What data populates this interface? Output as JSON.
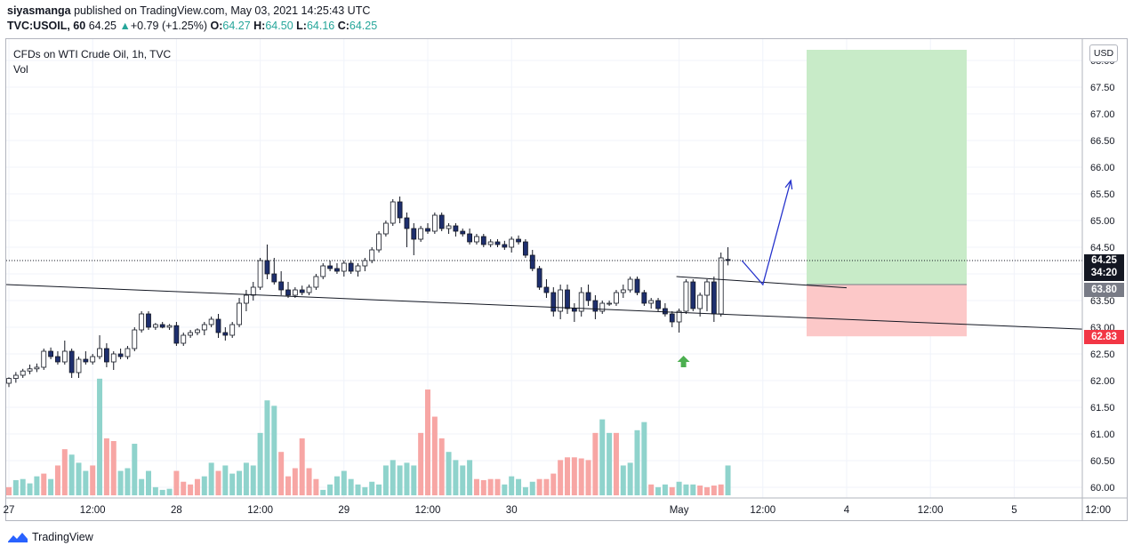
{
  "header": {
    "user": "siyasmanga",
    "published_text": "published on TradingView.com, May 03, 2021 14:25:43 UTC"
  },
  "ohlc": {
    "symbol": "TVC:USOIL, 60",
    "last": "64.25",
    "arrow": "▲",
    "change": "+0.79 (+1.25%)",
    "open_label": "O:",
    "open": "64.27",
    "high_label": "H:",
    "high": "64.50",
    "low_label": "L:",
    "low": "64.16",
    "close_label": "C:",
    "close": "64.25"
  },
  "legend": {
    "title": "CFDs on WTI Crude Oil, 1h, TVC",
    "volume": "Vol"
  },
  "price_scale": {
    "currency": "USD"
  },
  "tags": {
    "last_price": "64.25",
    "countdown": "34:20",
    "entry": "63.80",
    "stop": "62.83"
  },
  "brand": {
    "name": "TradingView",
    "icon": "tradingview-logo-icon"
  },
  "colors": {
    "up": "#26a69a",
    "down": "#ef5350",
    "candle_down": "#1e2f6e",
    "profit_zone": "#c8ebc8",
    "loss_zone": "#fcc8c8",
    "arrow_blue": "#2633cc",
    "signal_arrow": "#4caf50"
  },
  "chart_data": {
    "type": "candlestick",
    "symbol": "CFDs on WTI Crude Oil",
    "interval": "1h",
    "ylim": [
      59.9,
      68.2
    ],
    "y_ticks": [
      "60.00",
      "60.50",
      "61.00",
      "61.50",
      "62.00",
      "62.50",
      "63.00",
      "63.50",
      "64.00",
      "64.50",
      "65.00",
      "65.50",
      "66.00",
      "66.50",
      "67.00",
      "67.50",
      "68.00"
    ],
    "x_ticks": [
      {
        "hour": 0,
        "label": "27"
      },
      {
        "hour": 12,
        "label": "12:00"
      },
      {
        "hour": 24,
        "label": "28"
      },
      {
        "hour": 36,
        "label": "12:00"
      },
      {
        "hour": 48,
        "label": "29"
      },
      {
        "hour": 60,
        "label": "12:00"
      },
      {
        "hour": 72,
        "label": "30"
      },
      {
        "hour": 96,
        "label": "May"
      },
      {
        "hour": 108,
        "label": "12:00"
      },
      {
        "hour": 120,
        "label": "4"
      },
      {
        "hour": 132,
        "label": "12:00"
      },
      {
        "hour": 144,
        "label": "5"
      },
      {
        "hour": 156,
        "label": "12:00"
      }
    ],
    "candles": [
      [
        61.95,
        62.06,
        61.88,
        62.04
      ],
      [
        62.04,
        62.16,
        61.96,
        62.1
      ],
      [
        62.1,
        62.22,
        62.05,
        62.18
      ],
      [
        62.18,
        62.3,
        62.12,
        62.22
      ],
      [
        62.22,
        62.32,
        62.16,
        62.25
      ],
      [
        62.25,
        62.6,
        62.2,
        62.55
      ],
      [
        62.55,
        62.62,
        62.4,
        62.45
      ],
      [
        62.45,
        62.55,
        62.3,
        62.35
      ],
      [
        62.35,
        62.75,
        62.3,
        62.55
      ],
      [
        62.55,
        62.6,
        62.05,
        62.15
      ],
      [
        62.15,
        62.45,
        62.05,
        62.4
      ],
      [
        62.4,
        62.55,
        62.3,
        62.35
      ],
      [
        62.35,
        62.5,
        62.3,
        62.45
      ],
      [
        62.45,
        62.85,
        62.4,
        62.6
      ],
      [
        62.6,
        62.7,
        62.25,
        62.35
      ],
      [
        62.35,
        62.55,
        62.2,
        62.5
      ],
      [
        62.5,
        62.6,
        62.4,
        62.45
      ],
      [
        62.45,
        62.65,
        62.4,
        62.6
      ],
      [
        62.6,
        63.0,
        62.55,
        62.95
      ],
      [
        62.95,
        63.3,
        62.9,
        63.25
      ],
      [
        63.25,
        63.3,
        62.95,
        63.0
      ],
      [
        63.0,
        63.08,
        62.95,
        63.05
      ],
      [
        63.05,
        63.1,
        62.98,
        63.0
      ],
      [
        63.0,
        63.06,
        62.95,
        63.03
      ],
      [
        63.03,
        63.1,
        62.65,
        62.7
      ],
      [
        62.7,
        62.9,
        62.65,
        62.85
      ],
      [
        62.85,
        62.95,
        62.8,
        62.9
      ],
      [
        62.9,
        62.98,
        62.85,
        62.95
      ],
      [
        62.95,
        63.1,
        62.85,
        63.05
      ],
      [
        63.05,
        63.2,
        63.0,
        63.15
      ],
      [
        63.15,
        63.25,
        62.8,
        62.9
      ],
      [
        62.9,
        63.0,
        62.75,
        62.85
      ],
      [
        62.85,
        63.1,
        62.8,
        63.05
      ],
      [
        63.05,
        63.55,
        63.0,
        63.45
      ],
      [
        63.45,
        63.7,
        63.3,
        63.6
      ],
      [
        63.6,
        63.85,
        63.5,
        63.75
      ],
      [
        63.75,
        64.3,
        63.7,
        64.25
      ],
      [
        64.25,
        64.55,
        63.9,
        64.0
      ],
      [
        64.0,
        64.3,
        63.8,
        63.85
      ],
      [
        63.85,
        64.05,
        63.6,
        63.7
      ],
      [
        63.7,
        63.85,
        63.55,
        63.6
      ],
      [
        63.6,
        63.75,
        63.55,
        63.7
      ],
      [
        63.7,
        63.78,
        63.6,
        63.65
      ],
      [
        63.65,
        63.8,
        63.6,
        63.75
      ],
      [
        63.75,
        64.0,
        63.7,
        63.95
      ],
      [
        63.95,
        64.2,
        63.9,
        64.15
      ],
      [
        64.15,
        64.25,
        64.05,
        64.1
      ],
      [
        64.1,
        64.2,
        64.0,
        64.05
      ],
      [
        64.05,
        64.25,
        63.95,
        64.2
      ],
      [
        64.2,
        64.25,
        64.0,
        64.05
      ],
      [
        64.05,
        64.2,
        63.95,
        64.15
      ],
      [
        64.15,
        64.3,
        64.05,
        64.25
      ],
      [
        64.25,
        64.5,
        64.2,
        64.45
      ],
      [
        64.45,
        64.8,
        64.4,
        64.75
      ],
      [
        64.75,
        65.0,
        64.7,
        64.95
      ],
      [
        64.95,
        65.4,
        64.9,
        65.35
      ],
      [
        65.35,
        65.45,
        64.95,
        65.05
      ],
      [
        65.05,
        65.15,
        64.5,
        64.85
      ],
      [
        64.85,
        64.95,
        64.35,
        64.65
      ],
      [
        64.65,
        64.9,
        64.6,
        64.85
      ],
      [
        64.85,
        64.95,
        64.75,
        64.8
      ],
      [
        64.8,
        65.15,
        64.75,
        65.1
      ],
      [
        65.1,
        65.15,
        64.8,
        64.85
      ],
      [
        64.85,
        64.95,
        64.75,
        64.9
      ],
      [
        64.9,
        64.95,
        64.7,
        64.8
      ],
      [
        64.8,
        64.85,
        64.7,
        64.75
      ],
      [
        64.75,
        64.85,
        64.55,
        64.6
      ],
      [
        64.6,
        64.75,
        64.55,
        64.7
      ],
      [
        64.7,
        64.75,
        64.5,
        64.55
      ],
      [
        64.55,
        64.65,
        64.5,
        64.6
      ],
      [
        64.6,
        64.65,
        64.5,
        64.55
      ],
      [
        64.55,
        64.62,
        64.45,
        64.5
      ],
      [
        64.5,
        64.7,
        64.4,
        64.65
      ],
      [
        64.65,
        64.72,
        64.55,
        64.6
      ],
      [
        64.6,
        64.65,
        64.3,
        64.35
      ],
      [
        64.35,
        64.45,
        64.05,
        64.1
      ],
      [
        64.1,
        64.15,
        63.7,
        63.75
      ],
      [
        63.75,
        63.9,
        63.55,
        63.65
      ],
      [
        63.65,
        63.75,
        63.2,
        63.3
      ],
      [
        63.3,
        63.8,
        63.15,
        63.7
      ],
      [
        63.7,
        63.8,
        63.25,
        63.35
      ],
      [
        63.35,
        63.45,
        63.1,
        63.3
      ],
      [
        63.3,
        63.75,
        63.2,
        63.65
      ],
      [
        63.65,
        63.8,
        63.4,
        63.5
      ],
      [
        63.5,
        63.6,
        63.15,
        63.3
      ],
      [
        63.3,
        63.5,
        63.25,
        63.45
      ],
      [
        63.45,
        63.5,
        63.4,
        63.45
      ],
      [
        63.45,
        63.7,
        63.4,
        63.65
      ],
      [
        63.65,
        63.8,
        63.55,
        63.7
      ],
      [
        63.7,
        63.95,
        63.65,
        63.9
      ],
      [
        63.9,
        63.95,
        63.6,
        63.65
      ],
      [
        63.65,
        63.7,
        63.4,
        63.45
      ],
      [
        63.45,
        63.55,
        63.35,
        63.5
      ],
      [
        63.5,
        63.55,
        63.3,
        63.35
      ],
      [
        63.35,
        63.45,
        63.2,
        63.25
      ],
      [
        63.25,
        63.3,
        63.0,
        63.1
      ],
      [
        63.1,
        63.35,
        62.9,
        63.3
      ],
      [
        63.3,
        63.9,
        63.25,
        63.85
      ],
      [
        63.85,
        63.9,
        63.3,
        63.35
      ],
      [
        63.35,
        63.65,
        63.2,
        63.6
      ],
      [
        63.6,
        63.9,
        63.3,
        63.85
      ],
      [
        63.85,
        63.95,
        63.1,
        63.25
      ],
      [
        63.25,
        64.4,
        63.2,
        64.3
      ],
      [
        64.27,
        64.5,
        64.16,
        64.25
      ]
    ],
    "volume": [
      [
        0.15,
        "down"
      ],
      [
        0.28,
        "up"
      ],
      [
        0.3,
        "up"
      ],
      [
        0.22,
        "up"
      ],
      [
        0.35,
        "up"
      ],
      [
        0.4,
        "down"
      ],
      [
        0.3,
        "up"
      ],
      [
        0.55,
        "down"
      ],
      [
        0.85,
        "down"
      ],
      [
        0.75,
        "up"
      ],
      [
        0.6,
        "up"
      ],
      [
        0.45,
        "up"
      ],
      [
        0.55,
        "down"
      ],
      [
        2.15,
        "up"
      ],
      [
        1.05,
        "down"
      ],
      [
        1.0,
        "down"
      ],
      [
        0.45,
        "up"
      ],
      [
        0.5,
        "up"
      ],
      [
        0.95,
        "up"
      ],
      [
        0.3,
        "up"
      ],
      [
        0.45,
        "up"
      ],
      [
        0.15,
        "up"
      ],
      [
        0.1,
        "up"
      ],
      [
        0.12,
        "up"
      ],
      [
        0.45,
        "down"
      ],
      [
        0.25,
        "down"
      ],
      [
        0.2,
        "down"
      ],
      [
        0.3,
        "down"
      ],
      [
        0.35,
        "up"
      ],
      [
        0.6,
        "up"
      ],
      [
        0.45,
        "down"
      ],
      [
        0.55,
        "up"
      ],
      [
        0.4,
        "up"
      ],
      [
        0.45,
        "up"
      ],
      [
        0.6,
        "up"
      ],
      [
        0.55,
        "up"
      ],
      [
        1.15,
        "up"
      ],
      [
        1.75,
        "up"
      ],
      [
        1.65,
        "up"
      ],
      [
        0.8,
        "down"
      ],
      [
        0.35,
        "down"
      ],
      [
        0.5,
        "down"
      ],
      [
        1.05,
        "down"
      ],
      [
        0.5,
        "down"
      ],
      [
        0.3,
        "down"
      ],
      [
        0.1,
        "up"
      ],
      [
        0.2,
        "up"
      ],
      [
        0.35,
        "up"
      ],
      [
        0.45,
        "up"
      ],
      [
        0.3,
        "up"
      ],
      [
        0.2,
        "up"
      ],
      [
        0.15,
        "up"
      ],
      [
        0.25,
        "up"
      ],
      [
        0.2,
        "up"
      ],
      [
        0.55,
        "up"
      ],
      [
        0.65,
        "up"
      ],
      [
        0.55,
        "up"
      ],
      [
        0.6,
        "up"
      ],
      [
        0.55,
        "up"
      ],
      [
        1.15,
        "down"
      ],
      [
        1.95,
        "down"
      ],
      [
        1.45,
        "down"
      ],
      [
        1.05,
        "down"
      ],
      [
        0.8,
        "up"
      ],
      [
        0.65,
        "up"
      ],
      [
        0.55,
        "up"
      ],
      [
        0.65,
        "up"
      ],
      [
        0.3,
        "down"
      ],
      [
        0.28,
        "down"
      ],
      [
        0.3,
        "down"
      ],
      [
        0.3,
        "down"
      ],
      [
        0.2,
        "up"
      ],
      [
        0.35,
        "up"
      ],
      [
        0.3,
        "up"
      ],
      [
        0.15,
        "up"
      ],
      [
        0.25,
        "up"
      ],
      [
        0.3,
        "down"
      ],
      [
        0.3,
        "down"
      ],
      [
        0.4,
        "down"
      ],
      [
        0.65,
        "down"
      ],
      [
        0.7,
        "down"
      ],
      [
        0.7,
        "down"
      ],
      [
        0.68,
        "down"
      ],
      [
        0.65,
        "down"
      ],
      [
        1.15,
        "down"
      ],
      [
        1.4,
        "up"
      ],
      [
        1.15,
        "up"
      ],
      [
        1.15,
        "down"
      ],
      [
        0.55,
        "up"
      ],
      [
        0.6,
        "up"
      ],
      [
        1.2,
        "up"
      ],
      [
        1.35,
        "up"
      ],
      [
        0.2,
        "down"
      ],
      [
        0.15,
        "up"
      ],
      [
        0.2,
        "up"
      ],
      [
        0.15,
        "down"
      ],
      [
        0.25,
        "up"
      ],
      [
        0.2,
        "up"
      ],
      [
        0.2,
        "up"
      ],
      [
        0.18,
        "down"
      ],
      [
        0.15,
        "down"
      ],
      [
        0.18,
        "down"
      ],
      [
        0.2,
        "down"
      ],
      [
        0.55,
        "up"
      ]
    ],
    "drawings": {
      "long_position": {
        "entry": 63.8,
        "target": 68.2,
        "stop": 62.83
      },
      "trend_lines": [
        {
          "from": [
            0,
            63.8
          ],
          "to": [
            160,
            62.93
          ]
        },
        {
          "from": [
            96,
            63.95
          ],
          "to": [
            120,
            63.74
          ]
        }
      ],
      "projection_arrow": [
        [
          105,
          64.25
        ],
        [
          108,
          63.8
        ],
        [
          112,
          65.75
        ]
      ],
      "signal": {
        "hour": 96,
        "price": 62.35,
        "direction": "up"
      }
    }
  }
}
